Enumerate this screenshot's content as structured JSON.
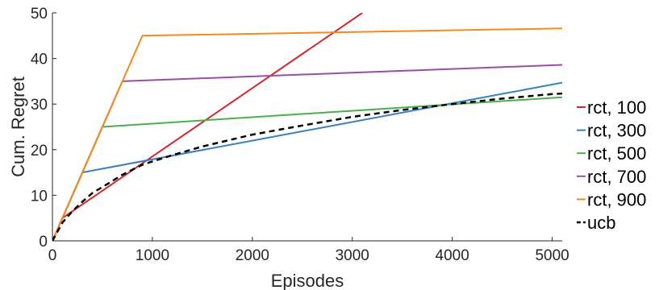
{
  "chart_data": {
    "type": "line",
    "xlabel": "Episodes",
    "ylabel": "Cum. Regret",
    "xlim": [
      0,
      5100
    ],
    "ylim": [
      0,
      50
    ],
    "xticks": [
      0,
      1000,
      2000,
      3000,
      4000,
      5000
    ],
    "yticks": [
      0,
      10,
      20,
      30,
      40,
      50
    ],
    "grid": false,
    "legend_position": "right",
    "series": [
      {
        "name": "rct, 100",
        "color": "#d62728",
        "dash": "solid",
        "points": [
          [
            0,
            0
          ],
          [
            100,
            5
          ],
          [
            3100,
            50
          ]
        ]
      },
      {
        "name": "rct, 300",
        "color": "#3a7ebf",
        "dash": "solid",
        "points": [
          [
            0,
            0
          ],
          [
            300,
            15
          ],
          [
            5100,
            34.7
          ]
        ]
      },
      {
        "name": "rct, 500",
        "color": "#4daf4a",
        "dash": "solid",
        "points": [
          [
            0,
            0
          ],
          [
            500,
            25
          ],
          [
            5100,
            31.5
          ]
        ]
      },
      {
        "name": "rct, 700",
        "color": "#984ea3",
        "dash": "solid",
        "points": [
          [
            0,
            0
          ],
          [
            700,
            35
          ],
          [
            5100,
            38.6
          ]
        ]
      },
      {
        "name": "rct, 900",
        "color": "#f28a1e",
        "dash": "solid",
        "points": [
          [
            0,
            0
          ],
          [
            900,
            45
          ],
          [
            5100,
            46.6
          ]
        ]
      },
      {
        "name": "ucb",
        "color": "#000000",
        "dash": "dashed",
        "points": [
          [
            0,
            0
          ],
          [
            100,
            4
          ],
          [
            200,
            6.5
          ],
          [
            300,
            8.6
          ],
          [
            400,
            10.5
          ],
          [
            500,
            11.8
          ],
          [
            700,
            14.5
          ],
          [
            900,
            16.7
          ],
          [
            1200,
            18.8
          ],
          [
            1500,
            20.7
          ],
          [
            2000,
            23.3
          ],
          [
            2500,
            25.3
          ],
          [
            3000,
            27.2
          ],
          [
            3500,
            28.7
          ],
          [
            4000,
            30.0
          ],
          [
            4500,
            31.2
          ],
          [
            5000,
            32.2
          ],
          [
            5100,
            32.3
          ]
        ]
      }
    ]
  }
}
